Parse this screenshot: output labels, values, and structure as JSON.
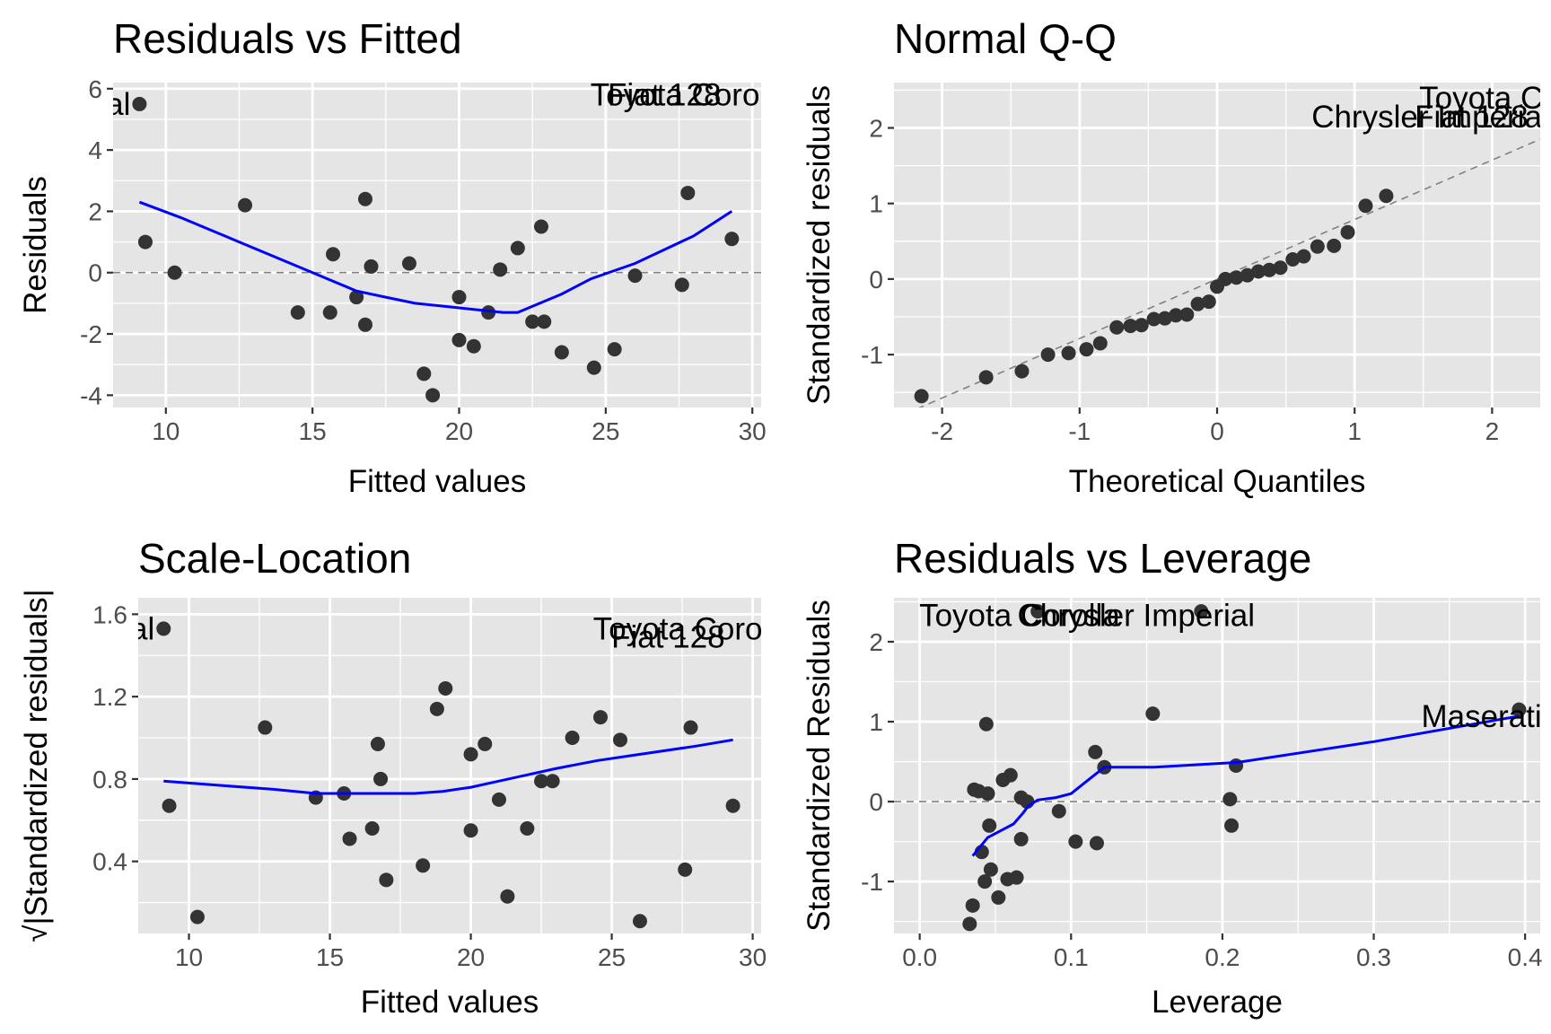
{
  "colors": {
    "panel_bg": "#E5E5E5",
    "grid": "#FFFFFF",
    "points": "#333333",
    "smooth": "#0000FF",
    "reference_line": "#808080"
  },
  "chart_data": [
    {
      "id": "rvf",
      "type": "scatter",
      "title": "Residuals vs Fitted",
      "xlabel": "Fitted values",
      "ylabel": "Residuals",
      "xlim": [
        8.2,
        30.3
      ],
      "ylim": [
        -4.4,
        6.2
      ],
      "xticks": [
        10,
        15,
        20,
        25,
        30
      ],
      "xtick_labels": [
        "10",
        "15",
        "20",
        "25",
        "30"
      ],
      "yticks": [
        -4,
        -2,
        0,
        2,
        4,
        6
      ],
      "ytick_labels": [
        "-4",
        "-2",
        "0",
        "2",
        "4",
        "6"
      ],
      "hline": 0,
      "x": [
        9.1,
        9.3,
        10.3,
        12.7,
        14.5,
        15.6,
        15.7,
        16.5,
        16.8,
        16.8,
        17.0,
        18.3,
        18.8,
        19.1,
        20.0,
        20.0,
        20.5,
        21.0,
        21.4,
        22.0,
        22.5,
        22.8,
        22.9,
        23.5,
        24.6,
        25.3,
        26.0,
        27.6,
        27.8,
        29.3
      ],
      "y": [
        5.5,
        1.0,
        0.0,
        2.2,
        -1.3,
        -1.3,
        0.6,
        -0.8,
        2.4,
        -1.7,
        0.2,
        0.3,
        -3.3,
        -4.0,
        -0.8,
        -2.2,
        -2.4,
        -1.3,
        0.1,
        0.8,
        -1.6,
        1.5,
        -1.6,
        -2.6,
        -3.1,
        -2.5,
        -0.1,
        -0.4,
        2.6,
        1.1
      ],
      "smooth": {
        "x": [
          9.1,
          10.5,
          12.5,
          14.5,
          16.5,
          17.5,
          18.5,
          19.5,
          20.5,
          21.5,
          22.0,
          22.5,
          23.5,
          24.5,
          26.0,
          28.0,
          29.3
        ],
        "y": [
          2.3,
          1.8,
          1.0,
          0.2,
          -0.6,
          -0.8,
          -1.0,
          -1.1,
          -1.2,
          -1.3,
          -1.3,
          -1.1,
          -0.7,
          -0.2,
          0.3,
          1.2,
          2.0
        ]
      },
      "point_labels": [
        {
          "text": "Chrysler Imperial",
          "x": 9.1,
          "y": 5.5,
          "anchor": "end"
        },
        {
          "text": "Toyota Corolla",
          "x": 27.9,
          "y": 5.8,
          "anchor": "middle"
        },
        {
          "text": "Fiat 128",
          "x": 27.0,
          "y": 5.8,
          "anchor": "middle"
        }
      ]
    },
    {
      "id": "qq",
      "type": "scatter",
      "title": "Normal Q-Q",
      "xlabel": "Theoretical Quantiles",
      "ylabel": "Standardized residuals",
      "xlim": [
        -2.35,
        2.35
      ],
      "ylim": [
        -1.7,
        2.6
      ],
      "xticks": [
        -2,
        -1,
        0,
        1,
        2
      ],
      "xtick_labels": [
        "-2",
        "-1",
        "0",
        "1",
        "2"
      ],
      "yticks": [
        -1,
        0,
        1,
        2
      ],
      "ytick_labels": [
        "-1",
        "0",
        "1",
        "2"
      ],
      "refline": {
        "x": [
          -2.35,
          2.35
        ],
        "y": [
          -1.85,
          1.85
        ]
      },
      "x": [
        -2.15,
        -1.68,
        -1.42,
        -1.23,
        -1.08,
        -0.95,
        -0.85,
        -0.73,
        -0.63,
        -0.55,
        -0.46,
        -0.38,
        -0.3,
        -0.22,
        -0.14,
        -0.06,
        0.0,
        0.06,
        0.14,
        0.22,
        0.3,
        0.38,
        0.46,
        0.55,
        0.63,
        0.73,
        0.85,
        0.95,
        1.08,
        1.23
      ],
      "y": [
        -1.55,
        -1.3,
        -1.22,
        -1.0,
        -0.98,
        -0.93,
        -0.85,
        -0.64,
        -0.62,
        -0.61,
        -0.53,
        -0.52,
        -0.48,
        -0.47,
        -0.33,
        -0.3,
        -0.1,
        0.0,
        0.02,
        0.05,
        0.1,
        0.12,
        0.15,
        0.26,
        0.3,
        0.43,
        0.44,
        0.62,
        0.97,
        1.1
      ],
      "point_labels": [
        {
          "text": "Chrysler Imperial",
          "x": 1.55,
          "y": 2.15,
          "anchor": "middle"
        },
        {
          "text": "Fiat 128",
          "x": 1.85,
          "y": 2.15,
          "anchor": "middle"
        },
        {
          "text": "Toyota Corolla",
          "x": 2.2,
          "y": 2.4,
          "anchor": "middle"
        }
      ]
    },
    {
      "id": "sl",
      "type": "scatter",
      "title": "Scale-Location",
      "xlabel": "Fitted values",
      "ylabel": "√|Standardized residuals|",
      "xlim": [
        8.2,
        30.3
      ],
      "ylim": [
        0.05,
        1.68
      ],
      "xticks": [
        10,
        15,
        20,
        25,
        30
      ],
      "xtick_labels": [
        "10",
        "15",
        "20",
        "25",
        "30"
      ],
      "yticks": [
        0.4,
        0.8,
        1.2,
        1.6
      ],
      "ytick_labels": [
        "0.4",
        "0.8",
        "1.2",
        "1.6"
      ],
      "x": [
        9.1,
        9.3,
        10.3,
        12.7,
        14.5,
        15.5,
        15.7,
        16.5,
        16.7,
        16.8,
        17.0,
        18.3,
        18.8,
        19.1,
        20.0,
        20.0,
        20.5,
        21.0,
        21.3,
        22.0,
        22.5,
        22.9,
        23.6,
        24.6,
        25.3,
        26.0,
        27.6,
        27.8,
        29.3
      ],
      "y": [
        1.53,
        0.67,
        0.13,
        1.05,
        0.71,
        0.73,
        0.51,
        0.56,
        0.97,
        0.8,
        0.31,
        0.38,
        1.14,
        1.24,
        0.92,
        0.55,
        0.97,
        0.7,
        0.23,
        0.56,
        0.79,
        0.79,
        1.0,
        1.1,
        0.99,
        0.11,
        0.36,
        1.05,
        0.67
      ],
      "smooth": {
        "x": [
          9.1,
          11.0,
          13.0,
          14.5,
          16.5,
          18.0,
          19.0,
          20.0,
          21.0,
          22.0,
          23.0,
          24.5,
          26.0,
          28.0,
          29.3
        ],
        "y": [
          0.79,
          0.77,
          0.75,
          0.73,
          0.73,
          0.73,
          0.74,
          0.76,
          0.79,
          0.82,
          0.85,
          0.89,
          0.92,
          0.96,
          0.99
        ]
      },
      "point_labels": [
        {
          "text": "Chrysler Imperial",
          "x": 9.1,
          "y": 1.53,
          "anchor": "end"
        },
        {
          "text": "Toyota Corolla",
          "x": 27.9,
          "y": 1.53,
          "anchor": "middle"
        },
        {
          "text": "Fiat 128",
          "x": 27.0,
          "y": 1.49,
          "anchor": "middle"
        }
      ]
    },
    {
      "id": "rvl",
      "type": "scatter",
      "title": "Residuals vs Leverage",
      "xlabel": "Leverage",
      "ylabel": "Standardized Residuals",
      "xlim": [
        -0.017,
        0.41
      ],
      "ylim": [
        -1.65,
        2.55
      ],
      "xticks": [
        0.0,
        0.1,
        0.2,
        0.3,
        0.4
      ],
      "xtick_labels": [
        "0.0",
        "0.1",
        "0.2",
        "0.3",
        "0.4"
      ],
      "yticks": [
        -1,
        0,
        1,
        2
      ],
      "ytick_labels": [
        "-1",
        "0",
        "1",
        "2"
      ],
      "hline": 0,
      "x": [
        0.033,
        0.035,
        0.036,
        0.039,
        0.041,
        0.043,
        0.044,
        0.045,
        0.046,
        0.047,
        0.052,
        0.055,
        0.058,
        0.06,
        0.064,
        0.067,
        0.067,
        0.071,
        0.078,
        0.092,
        0.103,
        0.116,
        0.117,
        0.122,
        0.154,
        0.186,
        0.205,
        0.206,
        0.209,
        0.396
      ],
      "y": [
        -1.53,
        -1.3,
        0.15,
        0.13,
        -0.63,
        -1.0,
        0.97,
        0.1,
        -0.3,
        -0.85,
        -1.2,
        0.27,
        -0.97,
        0.33,
        -0.95,
        -0.47,
        0.05,
        0.0,
        2.38,
        -0.12,
        -0.5,
        0.62,
        -0.52,
        0.43,
        1.1,
        2.38,
        0.03,
        -0.3,
        0.45,
        1.15
      ],
      "smooth": {
        "x": [
          0.035,
          0.045,
          0.055,
          0.062,
          0.068,
          0.072,
          0.078,
          0.09,
          0.1,
          0.11,
          0.122,
          0.155,
          0.21,
          0.3,
          0.396
        ],
        "y": [
          -0.68,
          -0.45,
          -0.35,
          -0.28,
          -0.15,
          -0.05,
          0.02,
          0.05,
          0.1,
          0.25,
          0.43,
          0.43,
          0.49,
          0.75,
          1.07
        ]
      },
      "point_labels": [
        {
          "text": "Toyota Corolla",
          "x": 0.066,
          "y": 2.33,
          "anchor": "middle"
        },
        {
          "text": "Chrysler Imperial",
          "x": 0.143,
          "y": 2.33,
          "anchor": "middle"
        },
        {
          "text": "Maserati Bora",
          "x": 0.396,
          "y": 1.07,
          "anchor": "middle"
        }
      ]
    }
  ]
}
